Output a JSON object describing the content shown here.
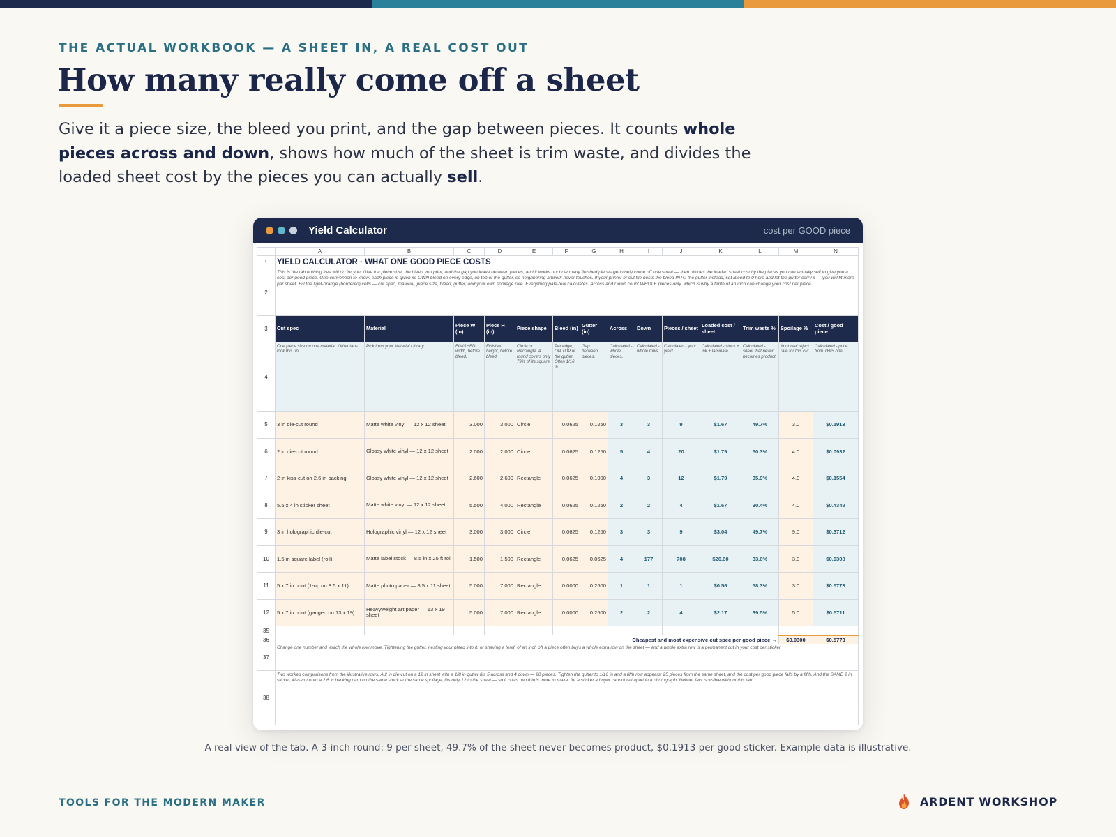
{
  "colors": {
    "navy": "#1d2a4c",
    "teal": "#2a8199",
    "orange": "#e99a3c",
    "input_fill": "#fdf2e4",
    "calc_fill": "#e8f1f3"
  },
  "page": {
    "eyebrow": "THE ACTUAL WORKBOOK — A SHEET IN, A REAL COST OUT",
    "title": "How many really come off a sheet",
    "lead": {
      "p1": "Give it a piece size, the bleed you print, and the gap between pieces. It counts ",
      "b1": "whole pieces across and down",
      "p2": ", shows how much of the sheet is trim waste, and divides the loaded sheet cost by the pieces you can actually ",
      "b2": "sell",
      "p3": "."
    },
    "caption": "A real view of the tab. A 3-inch round: 9 per sheet, 49.7% of the sheet never becomes product, $0.1913 per good sticker. Example data is illustrative.",
    "footer_left": "TOOLS FOR THE MODERN MAKER",
    "footer_brand": "ARDENT WORKSHOP",
    "footer_brand_icon": "flame-icon"
  },
  "window": {
    "title": "Yield Calculator",
    "right_label": "cost per GOOD piece",
    "dots": [
      "#e99a3c",
      "#5fb8c9",
      "#c9d0de"
    ]
  },
  "sheet": {
    "col_letters": [
      "A",
      "B",
      "C",
      "D",
      "E",
      "F",
      "G",
      "H",
      "I",
      "J",
      "K",
      "L",
      "M",
      "N"
    ],
    "row1_num": "1",
    "title": "YIELD CALCULATOR  ·  WHAT ONE GOOD PIECE COSTS",
    "row2_num": "2",
    "intro": "This is the tab nothing free will do for you. Give it a piece size, the bleed you print, and the gap you leave between pieces, and it works out how many finished pieces genuinely come off one sheet — then divides the loaded sheet cost by the pieces you can actually sell to give you a cost per good piece. One convention to know: each piece is given its OWN bleed on every edge, on top of the gutter, so neighboring artwork never touches. If your printer or cut file nests the bleed INTO the gutter instead, set Bleed to 0 here and let the gutter carry it — you will fit more per sheet.  Fill the light-orange (bordered) cells — cut spec, material, piece size, bleed, gutter, and your own spoilage rate. Everything pale-teal calculates. Across and Down count WHOLE pieces only, which is why a tenth of an inch can change your cost per piece.",
    "row3_num": "3",
    "headers": [
      "Cut spec",
      "Material",
      "Piece W (in)",
      "Piece H (in)",
      "Piece shape",
      "Bleed (in)",
      "Gutter (in)",
      "Across",
      "Down",
      "Pieces / sheet",
      "Loaded cost / sheet",
      "Trim waste %",
      "Spoilage %",
      "Cost / good piece"
    ],
    "row4_num": "4",
    "notes": [
      "One piece size on one material. Other tabs look this up.",
      "Pick from your Material Library.",
      "FINISHED width, before bleed.",
      "Finished height, before bleed.",
      "Circle or Rectangle. A round covers only 79% of its square.",
      "Per edge, ON TOP of the gutter. Often 1/16 in.",
      "Gap between pieces.",
      "Calculated - whole pieces.",
      "Calculated - whole rows.",
      "Calculated - your yield.",
      "Calculated - stock + ink + laminate.",
      "Calculated - sheet that never becomes product.",
      "Your real reject rate for this cut.",
      "Calculated - price from THIS one."
    ],
    "rows": [
      {
        "num": "5",
        "spec": "3 in die-cut round",
        "material": "Matte white vinyl — 12 x 12 sheet",
        "w": "3.000",
        "h": "3.000",
        "shape": "Circle",
        "bleed": "0.0625",
        "gutter": "0.1250",
        "across": "3",
        "down": "3",
        "pieces": "9",
        "loaded": "$1.67",
        "trim": "49.7%",
        "spoil": "3.0",
        "cost": "$0.1913"
      },
      {
        "num": "6",
        "spec": "2 in die-cut round",
        "material": "Glossy white vinyl — 12 x 12 sheet",
        "w": "2.000",
        "h": "2.000",
        "shape": "Circle",
        "bleed": "0.0625",
        "gutter": "0.1250",
        "across": "5",
        "down": "4",
        "pieces": "20",
        "loaded": "$1.79",
        "trim": "50.3%",
        "spoil": "4.0",
        "cost": "$0.0932"
      },
      {
        "num": "7",
        "spec": "2 in kiss-cut on 2.6 in backing",
        "material": "Glossy white vinyl — 12 x 12 sheet",
        "w": "2.600",
        "h": "2.600",
        "shape": "Rectangle",
        "bleed": "0.0625",
        "gutter": "0.1000",
        "across": "4",
        "down": "3",
        "pieces": "12",
        "loaded": "$1.79",
        "trim": "35.9%",
        "spoil": "4.0",
        "cost": "$0.1554"
      },
      {
        "num": "8",
        "spec": "5.5 x 4 in sticker sheet",
        "material": "Matte white vinyl — 12 x 12 sheet",
        "w": "5.500",
        "h": "4.000",
        "shape": "Rectangle",
        "bleed": "0.0625",
        "gutter": "0.1250",
        "across": "2",
        "down": "2",
        "pieces": "4",
        "loaded": "$1.67",
        "trim": "30.4%",
        "spoil": "4.0",
        "cost": "$0.4349"
      },
      {
        "num": "9",
        "spec": "3 in holographic die-cut",
        "material": "Holographic vinyl — 12 x 12 sheet",
        "w": "3.000",
        "h": "3.000",
        "shape": "Circle",
        "bleed": "0.0625",
        "gutter": "0.1250",
        "across": "3",
        "down": "3",
        "pieces": "9",
        "loaded": "$3.04",
        "trim": "49.7%",
        "spoil": "9.0",
        "cost": "$0.3712"
      },
      {
        "num": "10",
        "spec": "1.5 in square label (roll)",
        "material": "Matte label stock — 8.5 in x 25 ft roll",
        "w": "1.500",
        "h": "1.500",
        "shape": "Rectangle",
        "bleed": "0.0625",
        "gutter": "0.0625",
        "across": "4",
        "down": "177",
        "pieces": "708",
        "loaded": "$20.60",
        "trim": "33.6%",
        "spoil": "3.0",
        "cost": "$0.0300"
      },
      {
        "num": "11",
        "spec": "5 x 7 in print (1-up on 8.5 x 11)",
        "material": "Matte photo paper — 8.5 x 11 sheet",
        "w": "5.000",
        "h": "7.000",
        "shape": "Rectangle",
        "bleed": "0.0000",
        "gutter": "0.2500",
        "across": "1",
        "down": "1",
        "pieces": "1",
        "loaded": "$0.56",
        "trim": "58.3%",
        "spoil": "3.0",
        "cost": "$0.5773"
      },
      {
        "num": "12",
        "spec": "5 x 7 in print (ganged on 13 x 19)",
        "material": "Heavyweight art paper — 13 x 19 sheet",
        "w": "5.000",
        "h": "7.000",
        "shape": "Rectangle",
        "bleed": "0.0000",
        "gutter": "0.2500",
        "across": "2",
        "down": "2",
        "pieces": "4",
        "loaded": "$2.17",
        "trim": "39.5%",
        "spoil": "5.0",
        "cost": "$0.5711"
      }
    ],
    "row35_num": "35",
    "row36_num": "36",
    "summary_label": "Cheapest and most expensive cut spec per good piece →",
    "summary_min": "$0.0300",
    "summary_max": "$0.5773",
    "row37_num": "37",
    "note37": "Change one number and watch the whole row move. Tightening the gutter, nesting your bleed into it, or shaving a tenth of an inch off a piece often buys a whole extra row on the sheet — and a whole extra row is a permanent cut in your cost per sticker.",
    "row38_num": "38",
    "note38": "Two worked comparisons from the illustrative rows. A 2 in die-cut on a 12 in sheet with a 1/8 in gutter fits 5 across and 4 down — 20 pieces. Tighten the gutter to 1/16 in and a fifth row appears: 25 pieces from the same sheet, and the cost per good piece falls by a fifth. And the SAME 2 in sticker, kiss-cut onto a 2.6 in backing card on the same stock at the same spoilage, fits only 12 to the sheet — so it costs two thirds more to make, for a sticker a buyer cannot tell apart in a photograph. Neither fact is visible without this tab."
  }
}
